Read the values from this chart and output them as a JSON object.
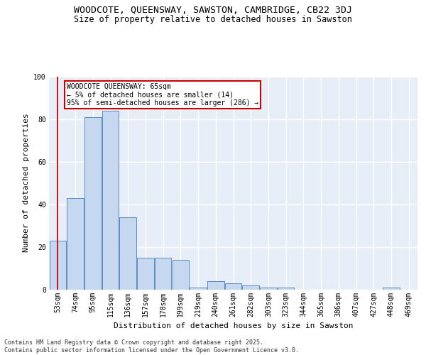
{
  "title": "WOODCOTE, QUEENSWAY, SAWSTON, CAMBRIDGE, CB22 3DJ",
  "subtitle": "Size of property relative to detached houses in Sawston",
  "xlabel": "Distribution of detached houses by size in Sawston",
  "ylabel": "Number of detached properties",
  "bar_labels": [
    "53sqm",
    "74sqm",
    "95sqm",
    "115sqm",
    "136sqm",
    "157sqm",
    "178sqm",
    "199sqm",
    "219sqm",
    "240sqm",
    "261sqm",
    "282sqm",
    "303sqm",
    "323sqm",
    "344sqm",
    "365sqm",
    "386sqm",
    "407sqm",
    "427sqm",
    "448sqm",
    "469sqm"
  ],
  "bar_values": [
    23,
    43,
    81,
    84,
    34,
    15,
    15,
    14,
    1,
    4,
    3,
    2,
    1,
    1,
    0,
    0,
    0,
    0,
    0,
    1,
    0
  ],
  "bar_color": "#c5d8f0",
  "bar_edge_color": "#5a8fc4",
  "bg_color": "#e8eef8",
  "grid_color": "#ffffff",
  "annotation_box_text": "WOODCOTE QUEENSWAY: 65sqm\n← 5% of detached houses are smaller (14)\n95% of semi-detached houses are larger (286) →",
  "annotation_box_color": "#cc0000",
  "ylim": [
    0,
    100
  ],
  "yticks": [
    0,
    20,
    40,
    60,
    80,
    100
  ],
  "footer": "Contains HM Land Registry data © Crown copyright and database right 2025.\nContains public sector information licensed under the Open Government Licence v3.0.",
  "title_fontsize": 9.5,
  "subtitle_fontsize": 8.5,
  "axis_label_fontsize": 8,
  "tick_fontsize": 7,
  "annotation_fontsize": 7,
  "footer_fontsize": 6
}
